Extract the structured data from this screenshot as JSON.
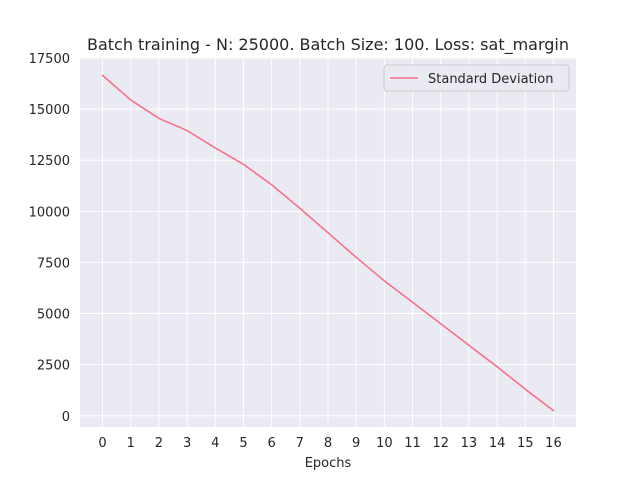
{
  "chart_data": {
    "type": "line",
    "title": "Batch training - N: 25000. Batch Size: 100. Loss: sat_margin",
    "xlabel": "Epochs",
    "ylabel": "",
    "x": [
      0,
      1,
      2,
      3,
      4,
      5,
      6,
      7,
      8,
      9,
      10,
      11,
      12,
      13,
      14,
      15,
      16
    ],
    "series": [
      {
        "name": "Standard Deviation",
        "color": "#f77189",
        "values": [
          16650,
          15450,
          14550,
          13950,
          13100,
          12300,
          11300,
          10150,
          8950,
          7750,
          6600,
          5550,
          4500,
          3450,
          2400,
          1300,
          250
        ]
      }
    ],
    "xlim": [
      -0.8,
      16.8
    ],
    "ylim": [
      -550,
      17500
    ],
    "xticks": [
      "0",
      "1",
      "2",
      "3",
      "4",
      "5",
      "6",
      "7",
      "8",
      "9",
      "10",
      "11",
      "12",
      "13",
      "14",
      "15",
      "16"
    ],
    "yticks": [
      "0",
      "2500",
      "5000",
      "7500",
      "10000",
      "12500",
      "15000",
      "17500"
    ],
    "grid": true,
    "legend_position": "top-right",
    "background_color": "#eaeaf2",
    "grid_color": "#ffffff"
  }
}
